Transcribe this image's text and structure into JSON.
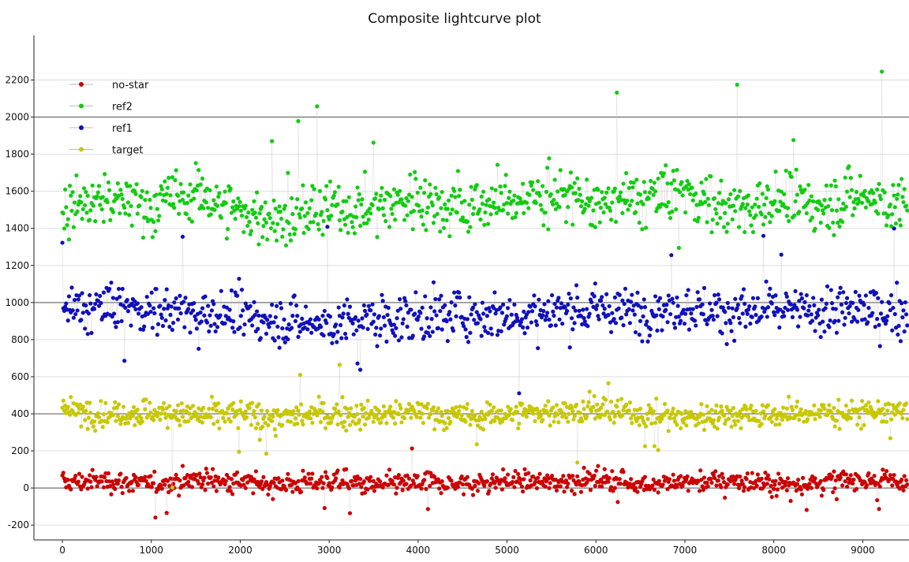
{
  "chart_data": {
    "type": "scatter",
    "title": "Composite lightcurve plot",
    "xlabel": "",
    "ylabel": "",
    "xlim": [
      -320,
      9520
    ],
    "ylim": [
      -280,
      2440
    ],
    "x_ticks": [
      0,
      1000,
      2000,
      3000,
      4000,
      5000,
      6000,
      7000,
      8000,
      9000
    ],
    "y_ticks": [
      -200,
      0,
      200,
      400,
      600,
      800,
      1000,
      1200,
      1400,
      1600,
      1800,
      2000,
      2200
    ],
    "reference_lines": [
      0,
      400,
      1000,
      2000
    ],
    "legend_position": "top-left",
    "x_range": [
      0,
      9500
    ],
    "series": [
      {
        "name": "no-star",
        "color": "#cc0000",
        "marker": "circle",
        "typical_range": [
          -120,
          200
        ],
        "outlier_range": [
          -160,
          230
        ],
        "points": [
          [
            0,
            30
          ],
          [
            500,
            40
          ],
          [
            1000,
            20
          ],
          [
            1500,
            50
          ],
          [
            2000,
            30
          ],
          [
            2500,
            20
          ],
          [
            3000,
            40
          ],
          [
            3500,
            10
          ],
          [
            4000,
            30
          ],
          [
            4500,
            20
          ],
          [
            5000,
            40
          ],
          [
            5500,
            30
          ],
          [
            6000,
            50
          ],
          [
            6500,
            20
          ],
          [
            7000,
            30
          ],
          [
            7500,
            40
          ],
          [
            8000,
            20
          ],
          [
            8500,
            30
          ],
          [
            9000,
            50
          ],
          [
            9500,
            30
          ]
        ]
      },
      {
        "name": "ref2",
        "color": "#11cc11",
        "marker": "circle",
        "typical_range": [
          1100,
          1950
        ],
        "outlier_range": [
          1050,
          2260
        ],
        "points": [
          [
            0,
            1500
          ],
          [
            500,
            1550
          ],
          [
            1000,
            1520
          ],
          [
            1500,
            1600
          ],
          [
            2000,
            1480
          ],
          [
            2500,
            1450
          ],
          [
            3000,
            1500
          ],
          [
            3500,
            1520
          ],
          [
            4000,
            1560
          ],
          [
            4500,
            1500
          ],
          [
            5000,
            1550
          ],
          [
            5500,
            1580
          ],
          [
            6000,
            1520
          ],
          [
            6500,
            1560
          ],
          [
            7000,
            1600
          ],
          [
            7500,
            1500
          ],
          [
            8000,
            1550
          ],
          [
            8500,
            1520
          ],
          [
            9000,
            1580
          ],
          [
            9500,
            1500
          ]
        ]
      },
      {
        "name": "ref1",
        "color": "#1010bb",
        "marker": "circle",
        "typical_range": [
          600,
          1300
        ],
        "outlier_range": [
          500,
          1420
        ],
        "points": [
          [
            0,
            950
          ],
          [
            500,
            980
          ],
          [
            1000,
            960
          ],
          [
            1500,
            950
          ],
          [
            2000,
            920
          ],
          [
            2500,
            900
          ],
          [
            3000,
            880
          ],
          [
            3500,
            900
          ],
          [
            4000,
            920
          ],
          [
            4500,
            940
          ],
          [
            5000,
            930
          ],
          [
            5500,
            950
          ],
          [
            6000,
            960
          ],
          [
            6500,
            950
          ],
          [
            7000,
            980
          ],
          [
            7500,
            940
          ],
          [
            8000,
            960
          ],
          [
            8500,
            950
          ],
          [
            9000,
            960
          ],
          [
            9500,
            940
          ]
        ]
      },
      {
        "name": "target",
        "color": "#c8c800",
        "marker": "circle",
        "typical_range": [
          200,
          600
        ],
        "outlier_range": [
          -10,
          680
        ],
        "points": [
          [
            0,
            420
          ],
          [
            500,
            400
          ],
          [
            1000,
            410
          ],
          [
            1500,
            390
          ],
          [
            2000,
            400
          ],
          [
            2500,
            380
          ],
          [
            3000,
            400
          ],
          [
            3500,
            390
          ],
          [
            4000,
            410
          ],
          [
            4500,
            380
          ],
          [
            5000,
            400
          ],
          [
            5500,
            410
          ],
          [
            6000,
            420
          ],
          [
            6500,
            400
          ],
          [
            7000,
            380
          ],
          [
            7500,
            400
          ],
          [
            8000,
            390
          ],
          [
            8500,
            410
          ],
          [
            9000,
            400
          ],
          [
            9500,
            420
          ]
        ]
      }
    ]
  }
}
